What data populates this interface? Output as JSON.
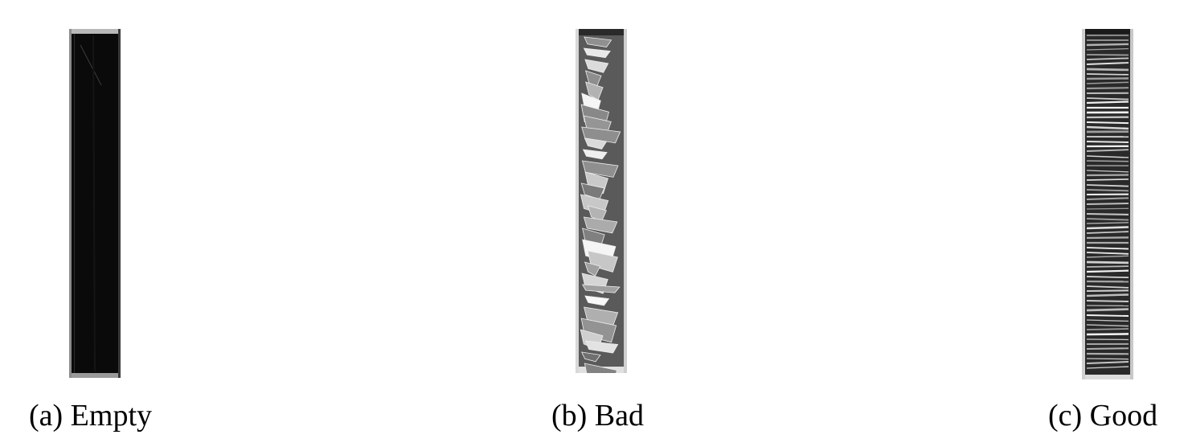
{
  "panels": [
    {
      "caption": "(a) Empty"
    },
    {
      "caption": "(b) Bad"
    },
    {
      "caption": "(c) Good"
    }
  ]
}
